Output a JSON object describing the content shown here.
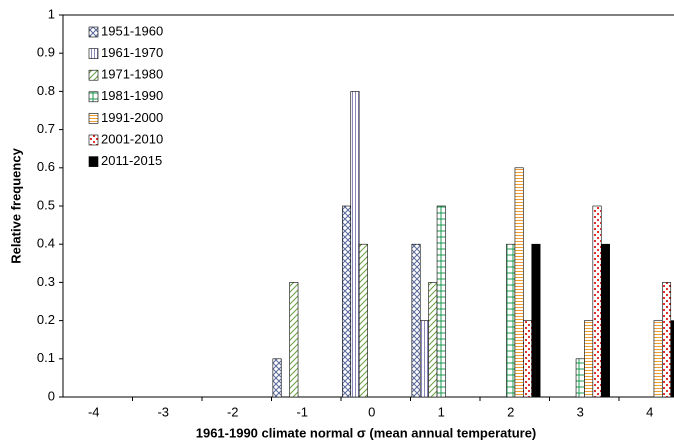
{
  "chart_data": {
    "type": "bar",
    "xlabel": "1961-1990 climate normal σ (mean annual temperature)",
    "ylabel": "Relative frequency",
    "categories": [
      "-4",
      "-3",
      "-2",
      "-1",
      "0",
      "1",
      "2",
      "3",
      "4"
    ],
    "ylim": [
      0,
      1
    ],
    "yticks": [
      0,
      0.1,
      0.2,
      0.3,
      0.4,
      0.5,
      0.6,
      0.7,
      0.8,
      0.9,
      1
    ],
    "grid": false,
    "legend": "upper left",
    "series": [
      {
        "name": "1951-1960",
        "color": "#5a6a9a",
        "pattern": "crosshatch",
        "values": [
          0,
          0,
          0,
          0.1,
          0.5,
          0.4,
          0,
          0,
          0
        ]
      },
      {
        "name": "1961-1970",
        "color": "#8a86b8",
        "pattern": "vertical",
        "values": [
          0,
          0,
          0,
          0,
          0.8,
          0.2,
          0,
          0,
          0
        ]
      },
      {
        "name": "1971-1980",
        "color": "#6aa040",
        "pattern": "diagonal",
        "values": [
          0,
          0,
          0,
          0.3,
          0.4,
          0.3,
          0,
          0,
          0
        ]
      },
      {
        "name": "1981-1990",
        "color": "#1f9a50",
        "pattern": "grid",
        "values": [
          0,
          0,
          0,
          0,
          0,
          0.5,
          0.4,
          0.1,
          0
        ]
      },
      {
        "name": "1991-2000",
        "color": "#f0a030",
        "pattern": "hlines",
        "values": [
          0,
          0,
          0,
          0,
          0,
          0,
          0.6,
          0.2,
          0.2
        ]
      },
      {
        "name": "2001-2010",
        "color": "#e03030",
        "pattern": "dots",
        "values": [
          0,
          0,
          0,
          0,
          0,
          0,
          0.2,
          0.5,
          0.3
        ]
      },
      {
        "name": "2011-2015",
        "color": "#000000",
        "pattern": "solid",
        "values": [
          0,
          0,
          0,
          0,
          0,
          0,
          0.4,
          0.4,
          0.2
        ]
      }
    ]
  }
}
